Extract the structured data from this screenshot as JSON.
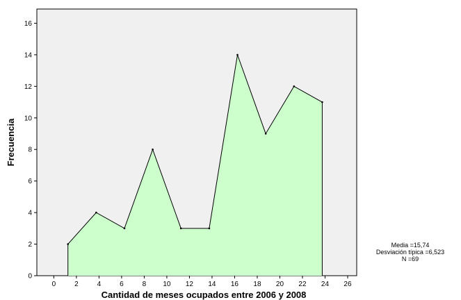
{
  "chart_data": {
    "type": "area",
    "xlabel": "Cantidad de meses ocupados entre 2006 y 2008",
    "ylabel": "Frecuencia",
    "xlim": [
      -1.5,
      26.8
    ],
    "ylim": [
      0,
      16.9
    ],
    "x_ticks": [
      "0",
      "2",
      "4",
      "6",
      "8",
      "10",
      "12",
      "14",
      "16",
      "18",
      "20",
      "22",
      "24",
      "26"
    ],
    "y_ticks": [
      "0",
      "2",
      "4",
      "6",
      "8",
      "10",
      "12",
      "14",
      "16"
    ],
    "grid": false,
    "plot_background": "#f0f0f0",
    "fill_color": "#ccffcc",
    "line_color": "#000000",
    "points": [
      {
        "x": 1.25,
        "y": 2
      },
      {
        "x": 3.75,
        "y": 4
      },
      {
        "x": 6.25,
        "y": 3
      },
      {
        "x": 8.75,
        "y": 8
      },
      {
        "x": 11.25,
        "y": 3
      },
      {
        "x": 13.75,
        "y": 3
      },
      {
        "x": 16.25,
        "y": 14
      },
      {
        "x": 18.75,
        "y": 9
      },
      {
        "x": 21.25,
        "y": 12
      },
      {
        "x": 23.75,
        "y": 11
      }
    ]
  },
  "stats": {
    "mean": "Media =15,74",
    "std": "Desviación típica =6,523",
    "n": "N =69"
  }
}
